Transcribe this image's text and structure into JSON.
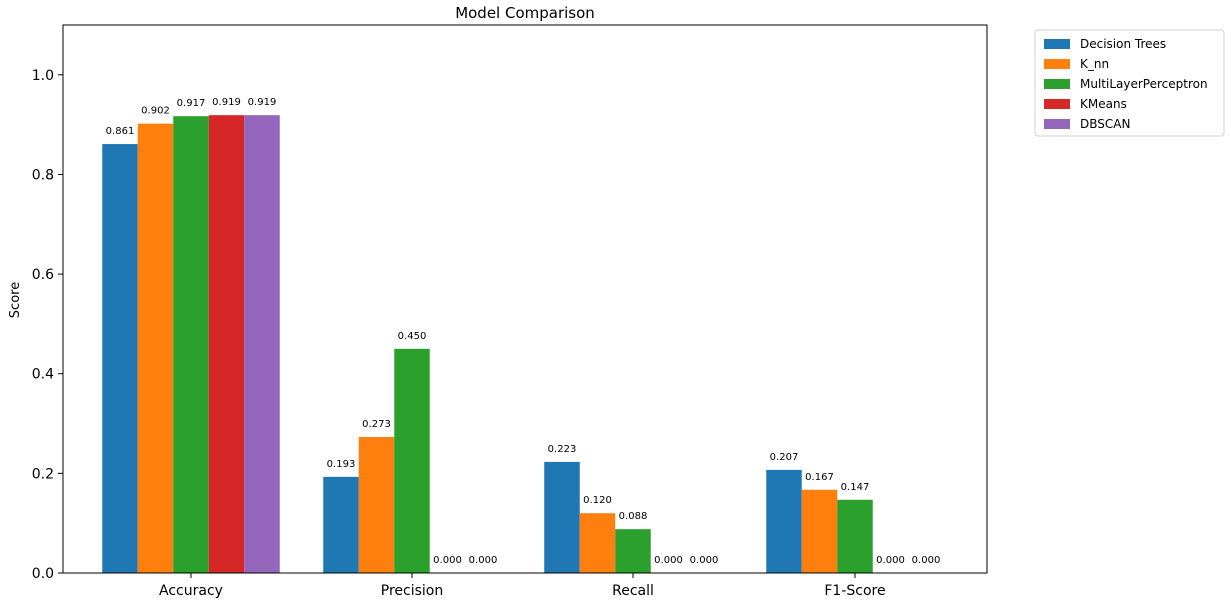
{
  "chart_data": {
    "type": "bar",
    "title": "Model Comparison",
    "xlabel": "",
    "ylabel": "Score",
    "ylim": [
      0,
      1.1
    ],
    "yticks": [
      "0.0",
      "0.2",
      "0.4",
      "0.6",
      "0.8",
      "1.0"
    ],
    "categories": [
      "Accuracy",
      "Precision",
      "Recall",
      "F1-Score"
    ],
    "series": [
      {
        "name": "Decision Trees",
        "color": "#1f77b4",
        "values": [
          0.861,
          0.193,
          0.223,
          0.207
        ],
        "labels": [
          "0.861",
          "0.193",
          "0.223",
          "0.207"
        ]
      },
      {
        "name": "K_nn",
        "color": "#ff7f0e",
        "values": [
          0.902,
          0.273,
          0.12,
          0.167
        ],
        "labels": [
          "0.902",
          "0.273",
          "0.120",
          "0.167"
        ]
      },
      {
        "name": "MultiLayerPerceptron",
        "color": "#2ca02c",
        "values": [
          0.917,
          0.45,
          0.088,
          0.147
        ],
        "labels": [
          "0.917",
          "0.450",
          "0.088",
          "0.147"
        ]
      },
      {
        "name": "KMeans",
        "color": "#d62728",
        "values": [
          0.919,
          0.0,
          0.0,
          0.0
        ],
        "labels": [
          "0.919",
          "0.000",
          "0.000",
          "0.000"
        ]
      },
      {
        "name": "DBSCAN",
        "color": "#9467bd",
        "values": [
          0.919,
          0.0,
          0.0,
          0.0
        ],
        "labels": [
          "0.919",
          "0.000",
          "0.000",
          "0.000"
        ]
      }
    ],
    "grid": false,
    "legend": "outside-top-right"
  }
}
